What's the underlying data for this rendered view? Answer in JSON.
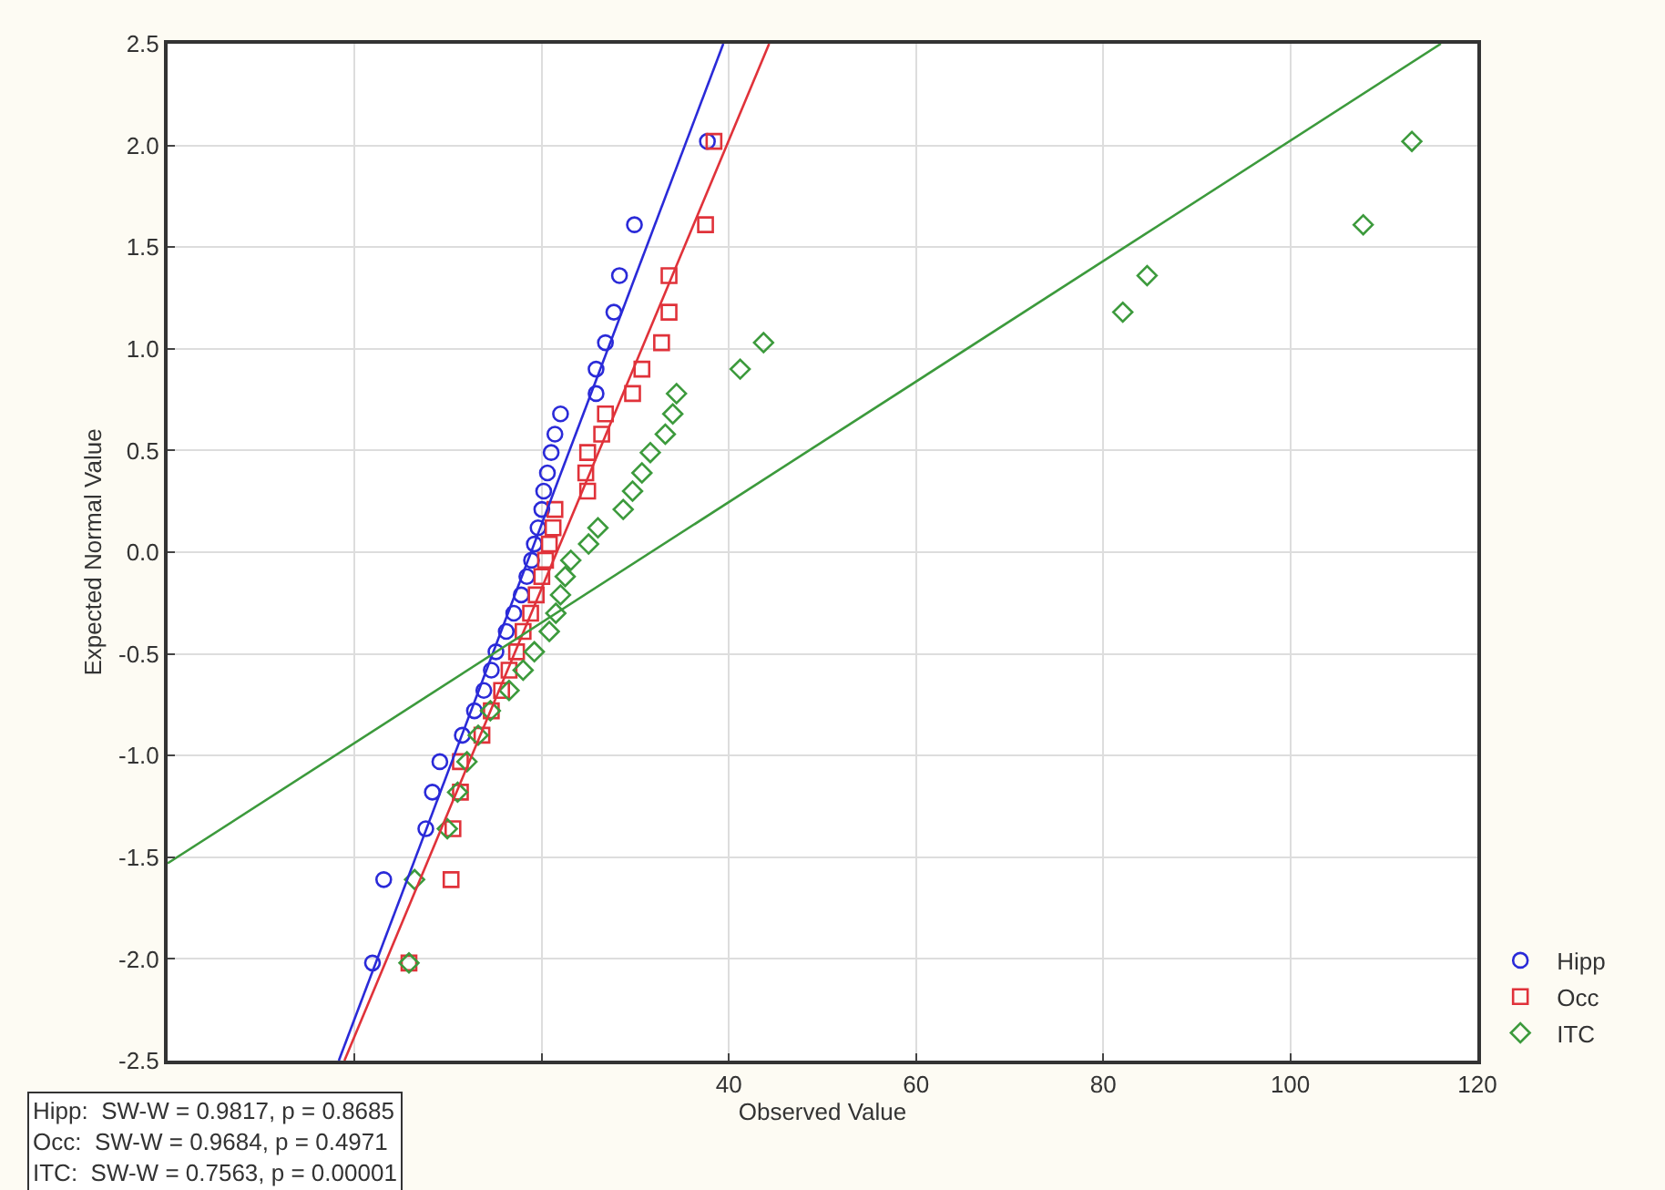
{
  "chart_data": {
    "type": "scatter",
    "xlabel": "Observed Value",
    "ylabel": "Expected Normal Value",
    "xlim": [
      -20,
      120
    ],
    "xticks": [
      {
        "value": 0,
        "label": null
      },
      {
        "value": 20,
        "label": null
      },
      40,
      60,
      80,
      100,
      120
    ],
    "ylim": [
      -2.5,
      2.5
    ],
    "yticks": [
      -2.5,
      {
        "value": -2,
        "label": "-2.0"
      },
      -1.5,
      {
        "value": -1,
        "label": "-1.0"
      },
      -0.5,
      {
        "value": 0,
        "label": "0.0"
      },
      0.5,
      {
        "value": 1,
        "label": "1.0"
      },
      1.5,
      {
        "value": 2,
        "label": "2.0"
      },
      2.5
    ],
    "grid": true,
    "legend": "bottom right",
    "series": [
      {
        "name": "Hipp",
        "marker": "circle",
        "color": "#2a2ad8",
        "x": [
          1.9,
          3.1,
          7.6,
          8.3,
          9.1,
          11.5,
          12.8,
          13.8,
          14.6,
          15.1,
          16.2,
          17.0,
          17.8,
          18.4,
          18.9,
          19.2,
          19.6,
          20.0,
          20.2,
          20.6,
          21.0,
          21.4,
          22.0,
          25.8,
          25.8,
          26.8,
          27.7,
          28.3,
          29.9,
          37.7
        ],
        "values": [
          -2.02,
          -1.61,
          -1.36,
          -1.18,
          -1.03,
          -0.9,
          -0.78,
          -0.68,
          -0.58,
          -0.49,
          -0.39,
          -0.3,
          -0.21,
          -0.12,
          -0.04,
          0.04,
          0.12,
          0.21,
          0.3,
          0.39,
          0.49,
          0.58,
          0.68,
          0.78,
          0.9,
          1.03,
          1.18,
          1.36,
          1.61,
          2.02
        ]
      },
      {
        "name": "Occ",
        "marker": "square",
        "color": "#e0323a",
        "x": [
          5.8,
          10.3,
          10.5,
          11.3,
          11.3,
          13.6,
          14.6,
          15.7,
          16.5,
          17.3,
          18.0,
          18.8,
          19.4,
          20.0,
          20.4,
          20.8,
          21.2,
          21.4,
          24.9,
          24.7,
          24.9,
          26.4,
          26.8,
          29.7,
          30.7,
          32.8,
          33.6,
          33.6,
          37.5,
          38.4
        ],
        "values": [
          -2.02,
          -1.61,
          -1.36,
          -1.18,
          -1.03,
          -0.9,
          -0.78,
          -0.68,
          -0.58,
          -0.49,
          -0.39,
          -0.3,
          -0.21,
          -0.12,
          -0.04,
          0.04,
          0.12,
          0.21,
          0.3,
          0.39,
          0.49,
          0.58,
          0.68,
          0.78,
          0.9,
          1.03,
          1.18,
          1.36,
          1.61,
          2.02
        ]
      },
      {
        "name": "ITC",
        "marker": "diamond",
        "color": "#3c9a3c",
        "x": [
          5.8,
          6.4,
          9.9,
          11.0,
          12.0,
          13.2,
          14.5,
          16.5,
          18.0,
          19.2,
          20.8,
          21.5,
          22.0,
          22.5,
          23.1,
          25.0,
          26.0,
          28.7,
          29.7,
          30.7,
          31.6,
          33.2,
          34.0,
          34.4,
          41.2,
          43.7,
          82.1,
          84.7,
          107.8,
          113.0
        ],
        "values": [
          -2.02,
          -1.61,
          -1.36,
          -1.18,
          -1.03,
          -0.9,
          -0.78,
          -0.68,
          -0.58,
          -0.49,
          -0.39,
          -0.3,
          -0.21,
          -0.12,
          -0.04,
          0.04,
          0.12,
          0.21,
          0.3,
          0.39,
          0.49,
          0.58,
          0.68,
          0.78,
          0.9,
          1.03,
          1.18,
          1.36,
          1.61,
          2.02
        ]
      },
      {
        "type": "line",
        "marker": "none",
        "color": "#2a2ad8",
        "x": [
          -1.7,
          39.4
        ],
        "values": [
          -2.5,
          2.5
        ]
      },
      {
        "type": "line",
        "marker": "none",
        "color": "#e0323a",
        "x": [
          -1.1,
          44.3
        ],
        "values": [
          -2.5,
          2.5
        ]
      },
      {
        "type": "line",
        "marker": "none",
        "color": "#3c9a3c",
        "x": [
          -20,
          116.1
        ],
        "values": [
          -1.53,
          2.5
        ]
      }
    ],
    "annotations": [
      "Hipp:  SW-W = 0.9817, p = 0.8685\nOcc:  SW-W = 0.9684, p = 0.4971\nITC:  SW-W = 0.7563, p = 0.00001"
    ]
  }
}
